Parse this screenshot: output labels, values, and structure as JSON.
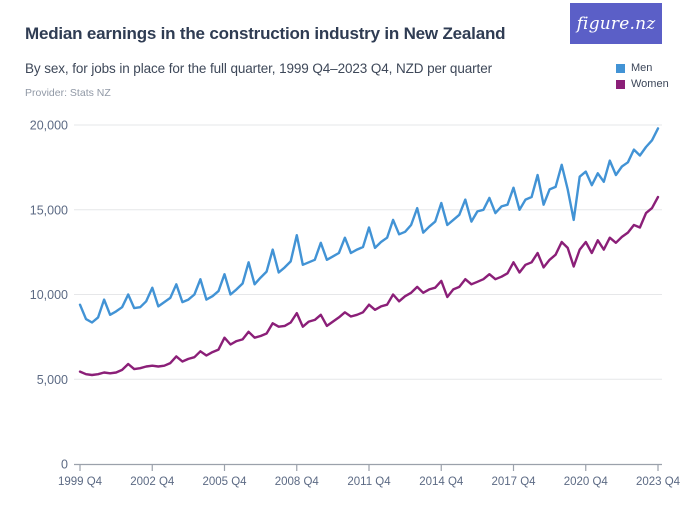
{
  "header": {
    "title": "Median earnings in the construction industry in New Zealand",
    "subtitle": "By sex, for jobs in place for the full quarter, 1999 Q4–2023 Q4, NZD per quarter",
    "provider": "Provider: Stats NZ",
    "logo_text": "figure.nz",
    "logo_bg_color": "#5b5fc7"
  },
  "legend": [
    {
      "label": "Men",
      "color": "#4293d5"
    },
    {
      "label": "Women",
      "color": "#8b1f78"
    }
  ],
  "chart_data": {
    "type": "line",
    "title": "Median earnings in the construction industry in New Zealand",
    "subtitle": "By sex, for jobs in place for the full quarter, 1999 Q4–2023 Q4, NZD per quarter",
    "xlabel": "",
    "ylabel": "NZD per quarter",
    "x_unit": "quarter",
    "x_start": "1999 Q4",
    "x_end": "2023 Q4",
    "points_per_series": 97,
    "ylim": [
      0,
      20000
    ],
    "grid": "horizontal",
    "legend_position": "top-right",
    "y_ticks": [
      0,
      5000,
      10000,
      15000,
      20000
    ],
    "y_tick_labels": [
      "0",
      "5,000",
      "10,000",
      "15,000",
      "20,000"
    ],
    "x_tick_labels": [
      "1999 Q4",
      "2002 Q4",
      "2005 Q4",
      "2008 Q4",
      "2011 Q4",
      "2014 Q4",
      "2017 Q4",
      "2020 Q4",
      "2023 Q4"
    ],
    "x_tick_interval_quarters": 12,
    "series": [
      {
        "name": "Men",
        "color": "#4293d5",
        "values": [
          9400,
          8550,
          8350,
          8650,
          9700,
          8800,
          9000,
          9250,
          10000,
          9200,
          9250,
          9600,
          10400,
          9300,
          9550,
          9800,
          10600,
          9550,
          9700,
          10000,
          10900,
          9700,
          9900,
          10200,
          11200,
          10000,
          10300,
          10650,
          11900,
          10600,
          11000,
          11350,
          12650,
          11300,
          11600,
          11950,
          13500,
          11750,
          11900,
          12050,
          13050,
          12050,
          12250,
          12450,
          13350,
          12450,
          12650,
          12800,
          13950,
          12750,
          13100,
          13350,
          14400,
          13550,
          13700,
          14100,
          15100,
          13650,
          14000,
          14300,
          15400,
          14100,
          14400,
          14700,
          15600,
          14300,
          14900,
          15000,
          15700,
          14800,
          15200,
          15300,
          16300,
          15000,
          15600,
          15750,
          17050,
          15300,
          16200,
          16350,
          17650,
          16200,
          14400,
          16950,
          17250,
          16450,
          17150,
          16650,
          17900,
          17050,
          17550,
          17800,
          18550,
          18200,
          18700,
          19100,
          19800
        ]
      },
      {
        "name": "Women",
        "color": "#8b1f78",
        "values": [
          5450,
          5300,
          5250,
          5300,
          5400,
          5350,
          5400,
          5550,
          5900,
          5600,
          5650,
          5750,
          5800,
          5750,
          5800,
          5950,
          6350,
          6050,
          6200,
          6300,
          6650,
          6400,
          6600,
          6750,
          7450,
          7050,
          7250,
          7350,
          7800,
          7450,
          7550,
          7700,
          8300,
          8100,
          8150,
          8350,
          8900,
          8100,
          8400,
          8500,
          8800,
          8150,
          8400,
          8650,
          8950,
          8700,
          8800,
          8950,
          9400,
          9100,
          9300,
          9400,
          10000,
          9600,
          9900,
          10100,
          10450,
          10100,
          10300,
          10400,
          10800,
          9850,
          10300,
          10450,
          10900,
          10600,
          10750,
          10900,
          11200,
          10900,
          11050,
          11250,
          11900,
          11300,
          11750,
          11900,
          12450,
          11600,
          12050,
          12350,
          13100,
          12750,
          11650,
          12650,
          13100,
          12450,
          13200,
          12650,
          13350,
          13050,
          13400,
          13650,
          14100,
          13950,
          14800,
          15100,
          15750
        ]
      }
    ],
    "colors": {
      "gridline": "#e6e7e9",
      "axis_line": "#9ba1ab",
      "tick_label": "#5c6a84"
    }
  }
}
